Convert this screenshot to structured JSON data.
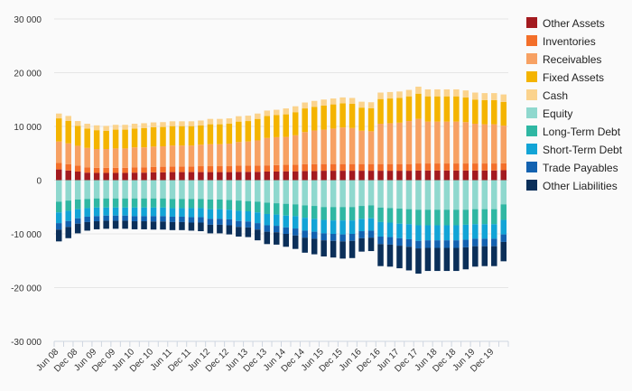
{
  "chart_data": {
    "type": "bar",
    "stacked": true,
    "ylim": [
      -30000,
      30000
    ],
    "grid": true,
    "legend_position": "right",
    "y_ticks": [
      {
        "value": 30000,
        "label": "30 000"
      },
      {
        "value": 20000,
        "label": "20 000"
      },
      {
        "value": 10000,
        "label": "10 000"
      },
      {
        "value": 0,
        "label": "0"
      },
      {
        "value": -10000,
        "label": "-10 000"
      },
      {
        "value": -20000,
        "label": "-20 000"
      },
      {
        "value": -30000,
        "label": "-30 000"
      }
    ],
    "categories": [
      "Jun 08",
      "Sep 08",
      "Dec 08",
      "Mar 09",
      "Jun 09",
      "Sep 09",
      "Dec 09",
      "Mar 10",
      "Jun 10",
      "Sep 10",
      "Dec 10",
      "Mar 11",
      "Jun 11",
      "Sep 11",
      "Dec 11",
      "Mar 12",
      "Jun 12",
      "Sep 12",
      "Dec 12",
      "Mar 13",
      "Jun 13",
      "Sep 13",
      "Dec 13",
      "Mar 14",
      "Jun 14",
      "Sep 14",
      "Dec 14",
      "Mar 15",
      "Jun 15",
      "Sep 15",
      "Dec 15",
      "Mar 16",
      "Jun 16",
      "Sep 16",
      "Dec 16",
      "Mar 17",
      "Jun 17",
      "Sep 17",
      "Dec 17",
      "Mar 18",
      "Jun 18",
      "Sep 18",
      "Dec 18",
      "Mar 19",
      "Jun 19",
      "Sep 19",
      "Dec 19",
      "Mar 20"
    ],
    "x_tick_labels": [
      {
        "index": 0,
        "label": "Jun 08"
      },
      {
        "index": 2,
        "label": "Dec 08"
      },
      {
        "index": 4,
        "label": "Jun 09"
      },
      {
        "index": 6,
        "label": "Dec 09"
      },
      {
        "index": 8,
        "label": "Jun 10"
      },
      {
        "index": 10,
        "label": "Dec 10"
      },
      {
        "index": 12,
        "label": "Jun 11"
      },
      {
        "index": 14,
        "label": "Dec 11"
      },
      {
        "index": 16,
        "label": "Jun 12"
      },
      {
        "index": 18,
        "label": "Dec 12"
      },
      {
        "index": 20,
        "label": "Jun 13"
      },
      {
        "index": 22,
        "label": "Dec 13"
      },
      {
        "index": 24,
        "label": "Jun 14"
      },
      {
        "index": 26,
        "label": "Dec 14"
      },
      {
        "index": 28,
        "label": "Jun 15"
      },
      {
        "index": 30,
        "label": "Dec 15"
      },
      {
        "index": 32,
        "label": "Jun 16"
      },
      {
        "index": 34,
        "label": "Dec 16"
      },
      {
        "index": 36,
        "label": "Jun 17"
      },
      {
        "index": 38,
        "label": "Dec 17"
      },
      {
        "index": 40,
        "label": "Jun 18"
      },
      {
        "index": 42,
        "label": "Dec 18"
      },
      {
        "index": 44,
        "label": "Jun 19"
      },
      {
        "index": 46,
        "label": "Dec 19"
      }
    ],
    "series": [
      {
        "name": "Other Assets",
        "color": "#a31a1f",
        "values": [
          2000,
          1800,
          1600,
          1400,
          1350,
          1350,
          1350,
          1350,
          1400,
          1400,
          1450,
          1450,
          1500,
          1500,
          1500,
          1500,
          1500,
          1500,
          1500,
          1550,
          1550,
          1550,
          1600,
          1600,
          1650,
          1650,
          1700,
          1700,
          1750,
          1750,
          1750,
          1750,
          1750,
          1750,
          1750,
          1750,
          1750,
          1750,
          1800,
          1800,
          1800,
          1800,
          1800,
          1800,
          1800,
          1800,
          1800,
          1850
        ]
      },
      {
        "name": "Inventories",
        "color": "#f36f2a",
        "values": [
          1200,
          1150,
          1100,
          1000,
          950,
          950,
          950,
          950,
          1000,
          1000,
          1000,
          1050,
          1050,
          1050,
          1050,
          1100,
          1100,
          1100,
          1100,
          1150,
          1150,
          1150,
          1150,
          1200,
          1200,
          1200,
          1250,
          1250,
          1250,
          1250,
          1250,
          1250,
          1250,
          1250,
          1250,
          1250,
          1250,
          1250,
          1300,
          1300,
          1300,
          1300,
          1300,
          1300,
          1300,
          1300,
          1300,
          1300
        ]
      },
      {
        "name": "Receivables",
        "color": "#f7a163",
        "values": [
          4000,
          3900,
          3700,
          3600,
          3500,
          3500,
          3600,
          3600,
          3700,
          3700,
          3800,
          3800,
          3900,
          3900,
          3900,
          4000,
          4100,
          4100,
          4200,
          4400,
          4500,
          4700,
          5100,
          5200,
          5200,
          5500,
          6000,
          6300,
          6400,
          6600,
          6800,
          6700,
          6200,
          6100,
          7500,
          7600,
          7700,
          8000,
          8300,
          7800,
          7800,
          7800,
          7800,
          7700,
          7400,
          7300,
          7300,
          7000
        ]
      },
      {
        "name": "Fixed Assets",
        "color": "#f4b400",
        "values": [
          4300,
          4200,
          3700,
          3600,
          3500,
          3400,
          3500,
          3500,
          3500,
          3600,
          3600,
          3600,
          3600,
          3600,
          3600,
          3600,
          3700,
          3700,
          3700,
          3800,
          3800,
          4000,
          4100,
          4100,
          4200,
          4300,
          4400,
          4400,
          4500,
          4500,
          4500,
          4500,
          4300,
          4300,
          4600,
          4600,
          4600,
          4600,
          4700,
          4700,
          4700,
          4700,
          4700,
          4600,
          4500,
          4500,
          4500,
          4400
        ]
      },
      {
        "name": "Cash",
        "color": "#fbd38d",
        "values": [
          900,
          900,
          900,
          900,
          900,
          900,
          900,
          900,
          900,
          900,
          900,
          900,
          900,
          900,
          900,
          900,
          1000,
          1000,
          1000,
          1000,
          1000,
          1000,
          1000,
          1000,
          1100,
          1100,
          1100,
          1100,
          1100,
          1100,
          1100,
          1100,
          1100,
          1100,
          1200,
          1200,
          1200,
          1200,
          1300,
          1300,
          1300,
          1300,
          1300,
          1300,
          1300,
          1300,
          1300,
          1400
        ]
      },
      {
        "name": "Equity",
        "color": "#8fd8ce",
        "values": [
          -4000,
          -3800,
          -3600,
          -3500,
          -3400,
          -3400,
          -3400,
          -3400,
          -3400,
          -3400,
          -3400,
          -3400,
          -3500,
          -3500,
          -3500,
          -3500,
          -3600,
          -3600,
          -3700,
          -3800,
          -3900,
          -4000,
          -4200,
          -4300,
          -4400,
          -4500,
          -4700,
          -4800,
          -5000,
          -5000,
          -5000,
          -5000,
          -4800,
          -4700,
          -5100,
          -5200,
          -5300,
          -5400,
          -5500,
          -5500,
          -5500,
          -5500,
          -5500,
          -5500,
          -5400,
          -5400,
          -5400,
          -4500
        ]
      },
      {
        "name": "Long-Term Debt",
        "color": "#2fb7a3",
        "values": [
          -2000,
          -1900,
          -1800,
          -1700,
          -1700,
          -1700,
          -1700,
          -1700,
          -1700,
          -1700,
          -1700,
          -1700,
          -1700,
          -1700,
          -1700,
          -1700,
          -1800,
          -1800,
          -1800,
          -1900,
          -1900,
          -2000,
          -2100,
          -2100,
          -2200,
          -2200,
          -2300,
          -2400,
          -2400,
          -2500,
          -2500,
          -2500,
          -2400,
          -2400,
          -2700,
          -2700,
          -2800,
          -2800,
          -2900,
          -2900,
          -2900,
          -2900,
          -2900,
          -2800,
          -2800,
          -2800,
          -2800,
          -2900
        ]
      },
      {
        "name": "Short-Term Debt",
        "color": "#12a4d6",
        "values": [
          -2000,
          -1900,
          -1700,
          -1600,
          -1600,
          -1500,
          -1500,
          -1500,
          -1600,
          -1600,
          -1600,
          -1600,
          -1600,
          -1600,
          -1700,
          -1700,
          -1800,
          -1800,
          -1800,
          -1900,
          -1900,
          -2000,
          -2100,
          -2100,
          -2200,
          -2300,
          -2400,
          -2400,
          -2500,
          -2500,
          -2600,
          -2500,
          -2300,
          -2300,
          -2700,
          -2700,
          -2700,
          -2800,
          -2900,
          -2800,
          -2800,
          -2800,
          -2800,
          -2800,
          -2700,
          -2700,
          -2700,
          -2700
        ]
      },
      {
        "name": "Trade Payables",
        "color": "#1362b0",
        "values": [
          -1200,
          -1100,
          -1000,
          -1000,
          -950,
          -950,
          -950,
          -950,
          -950,
          -950,
          -1000,
          -1000,
          -1000,
          -1000,
          -1000,
          -1000,
          -1100,
          -1100,
          -1100,
          -1100,
          -1100,
          -1200,
          -1200,
          -1200,
          -1200,
          -1300,
          -1300,
          -1300,
          -1300,
          -1300,
          -1300,
          -1300,
          -1300,
          -1300,
          -1400,
          -1400,
          -1400,
          -1400,
          -1400,
          -1400,
          -1400,
          -1400,
          -1400,
          -1400,
          -1400,
          -1400,
          -1400,
          -1400
        ]
      },
      {
        "name": "Other Liabilities",
        "color": "#0b2f59",
        "values": [
          -2200,
          -2100,
          -1800,
          -1600,
          -1500,
          -1500,
          -1500,
          -1500,
          -1500,
          -1500,
          -1500,
          -1500,
          -1500,
          -1500,
          -1500,
          -1600,
          -1600,
          -1600,
          -1700,
          -1800,
          -1800,
          -2000,
          -2300,
          -2300,
          -2400,
          -2500,
          -2800,
          -2900,
          -3000,
          -3100,
          -3200,
          -3200,
          -2500,
          -2500,
          -4100,
          -4100,
          -4200,
          -4400,
          -4700,
          -4300,
          -4300,
          -4300,
          -4300,
          -4100,
          -3800,
          -3700,
          -3700,
          -3600
        ]
      }
    ]
  }
}
